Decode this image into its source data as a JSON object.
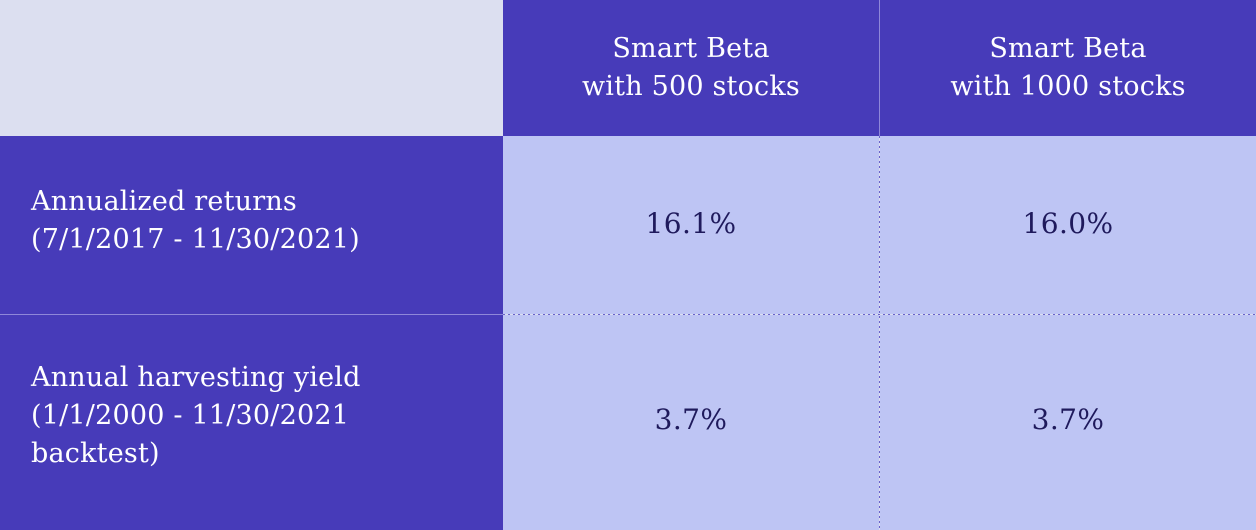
{
  "chart_data": {
    "type": "table",
    "columns": [
      "",
      "Smart Beta\nwith 500 stocks",
      "Smart Beta\nwith 1000 stocks"
    ],
    "rows": [
      {
        "label": [
          "Annualized returns",
          "(7/1/2017 - 11/30/2021)"
        ],
        "values": [
          "16.1%",
          "16.0%"
        ]
      },
      {
        "label": [
          "Annual harvesting yield",
          "(1/1/2000 - 11/30/2021",
          "backtest)"
        ],
        "values": [
          "3.7%",
          "3.7%"
        ]
      }
    ]
  },
  "table": {
    "headers": [
      {
        "line1": "Smart Beta",
        "line2": "with 500 stocks"
      },
      {
        "line1": "Smart Beta",
        "line2": "with 1000 stocks"
      }
    ],
    "rows": [
      {
        "label_lines": [
          "Annualized returns",
          "(7/1/2017 - 11/30/2021)"
        ],
        "values": [
          "16.1%",
          "16.0%"
        ]
      },
      {
        "label_lines": [
          "Annual harvesting yield",
          "(1/1/2000 - 11/30/2021",
          "backtest)"
        ],
        "values": [
          "3.7%",
          "3.7%"
        ]
      }
    ]
  },
  "colors": {
    "header_bg": "#473bb9",
    "corner_bg": "#dcdff0",
    "value_bg": "#bec5f4",
    "value_text": "#1f1a5c",
    "header_text": "#ffffff"
  }
}
